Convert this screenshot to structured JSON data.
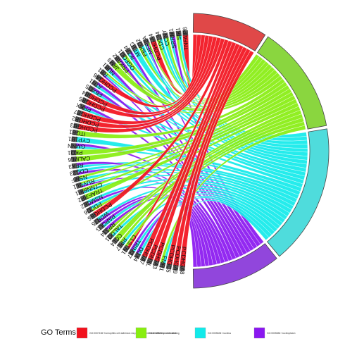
{
  "chart_data": {
    "type": "chord",
    "legend": {
      "title": "GO Terms",
      "placement": "bottom"
    },
    "terms": [
      {
        "id": "t1",
        "name": "GO:0007156~homophilic cell adhesion via plasma membrane adhesion molecules",
        "color": "#f2111d",
        "arc_color": "#e04848"
      },
      {
        "id": "t2",
        "name": "GO:0005515~protein binding",
        "color": "#88ee10",
        "arc_color": "#8ad63f"
      },
      {
        "id": "t3",
        "name": "GO:0005634~nucleus",
        "color": "#12eaea",
        "arc_color": "#4fdcdc"
      },
      {
        "id": "t4",
        "name": "GO:0005654~nucleoplasm",
        "color": "#8a17f0",
        "arc_color": "#9146dc"
      }
    ],
    "genes": [
      {
        "name": "TNFAIP6",
        "terms": [
          "t1"
        ]
      },
      {
        "name": "SIK1",
        "terms": [
          "t2",
          "t3"
        ]
      },
      {
        "name": "SRRM1",
        "terms": [
          "t3",
          "t4"
        ]
      },
      {
        "name": "CCNY",
        "terms": [
          "t3",
          "t2"
        ]
      },
      {
        "name": "CDC34",
        "terms": [
          "t2",
          "t3"
        ]
      },
      {
        "name": "PCDHGA4",
        "terms": [
          "t1"
        ]
      },
      {
        "name": "MEF2A",
        "terms": [
          "t3",
          "t4",
          "t2"
        ]
      },
      {
        "name": "FBXO2",
        "terms": [
          "t2",
          "t3"
        ]
      },
      {
        "name": "MT1G",
        "terms": [
          "t3"
        ]
      },
      {
        "name": "IKZF4",
        "terms": [
          "t3",
          "t4"
        ]
      },
      {
        "name": "OGFOD1",
        "terms": [
          "t3",
          "t2"
        ]
      },
      {
        "name": "PRKAB2",
        "terms": [
          "t2",
          "t4"
        ]
      },
      {
        "name": "JAM3",
        "terms": [
          "t2"
        ]
      },
      {
        "name": "NUB1",
        "terms": [
          "t3",
          "t4"
        ]
      },
      {
        "name": "RB1",
        "terms": [
          "t4",
          "t3",
          "t2"
        ]
      },
      {
        "name": "PCDHGA6",
        "terms": [
          "t1"
        ]
      },
      {
        "name": "ATN1",
        "terms": [
          "t3",
          "t4"
        ]
      },
      {
        "name": "FBXO5",
        "terms": [
          "t3",
          "t4"
        ]
      },
      {
        "name": "PCDHGB4",
        "terms": [
          "t1"
        ]
      },
      {
        "name": "PCDHGB5",
        "terms": [
          "t1"
        ]
      },
      {
        "name": "PRKX",
        "terms": [
          "t3",
          "t4"
        ]
      },
      {
        "name": "PCDHGB7",
        "terms": [
          "t1"
        ]
      },
      {
        "name": "PCDHGB2",
        "terms": [
          "t1"
        ]
      },
      {
        "name": "PCDHGB3",
        "terms": [
          "t1"
        ]
      },
      {
        "name": "ITGB1",
        "terms": [
          "t2"
        ]
      },
      {
        "name": "CYP1B1",
        "terms": [
          "t3"
        ]
      },
      {
        "name": "GMNN",
        "terms": [
          "t3",
          "t4"
        ]
      },
      {
        "name": "PKD1",
        "terms": [
          "t2"
        ]
      },
      {
        "name": "CALML6",
        "terms": [
          "t2"
        ]
      },
      {
        "name": "RFX3",
        "terms": [
          "t3",
          "t4"
        ]
      },
      {
        "name": "CDC23",
        "terms": [
          "t4",
          "t3"
        ]
      },
      {
        "name": "NSMF",
        "terms": [
          "t3",
          "t2"
        ]
      },
      {
        "name": "RUVBL1",
        "terms": [
          "t4",
          "t3",
          "t2"
        ]
      },
      {
        "name": "CTNNBIP1",
        "terms": [
          "t3",
          "t2"
        ]
      },
      {
        "name": "TRAF3IP2",
        "terms": [
          "t2"
        ]
      },
      {
        "name": "NSMCE2",
        "terms": [
          "t4",
          "t3"
        ]
      },
      {
        "name": "PDCD6",
        "terms": [
          "t2",
          "t3"
        ]
      },
      {
        "name": "PCDHGB6",
        "terms": [
          "t1"
        ]
      },
      {
        "name": "WDR75",
        "terms": [
          "t4",
          "t3"
        ]
      },
      {
        "name": "PAPOLG",
        "terms": [
          "t3",
          "t4"
        ]
      },
      {
        "name": "RPS14",
        "terms": [
          "t2",
          "t4"
        ]
      },
      {
        "name": "TALDO1",
        "terms": [
          "t3",
          "t2"
        ]
      },
      {
        "name": "CCL4",
        "terms": [
          "t2"
        ]
      },
      {
        "name": "RPL7",
        "terms": [
          "t3",
          "t2"
        ]
      },
      {
        "name": "CLSTN1",
        "terms": [
          "t1",
          "t2"
        ]
      },
      {
        "name": "TRIM27",
        "terms": [
          "t3",
          "t4"
        ]
      },
      {
        "name": "DUX4",
        "terms": [
          "t3",
          "t4"
        ]
      },
      {
        "name": "PCDHGA7",
        "terms": [
          "t1"
        ]
      },
      {
        "name": "PCDHXL",
        "terms": [
          "t1"
        ]
      },
      {
        "name": "PCDHGA3",
        "terms": [
          "t1"
        ]
      },
      {
        "name": "FMR1",
        "terms": [
          "t3",
          "t2"
        ]
      },
      {
        "name": "PCDHGC5",
        "terms": [
          "t1"
        ]
      },
      {
        "name": "PCDHGA9",
        "terms": [
          "t1"
        ]
      },
      {
        "name": "PCDHGA8",
        "terms": [
          "t1"
        ]
      }
    ]
  }
}
